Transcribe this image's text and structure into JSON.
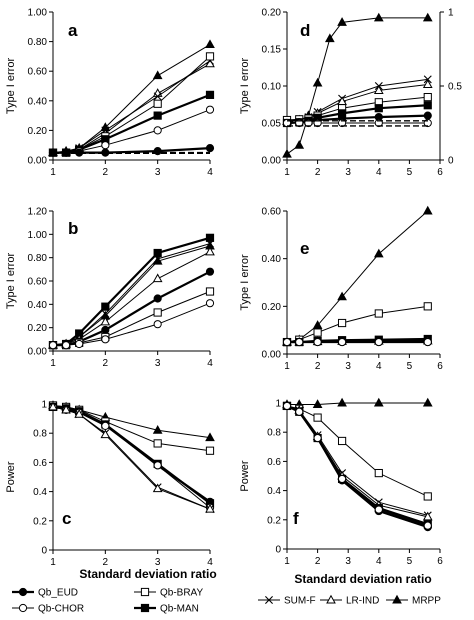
{
  "figure": {
    "xtitle_left": "Standard deviation ratio",
    "xtitle_right": "Standard deviation ratio"
  },
  "legend": {
    "left": [
      {
        "name": "Qb_EUD",
        "series": "EUD"
      },
      {
        "name": "Qb-BRAY",
        "series": "BRAY"
      },
      {
        "name": "Qb-CHOR",
        "series": "CHOR"
      },
      {
        "name": "Qb-MAN",
        "series": "MAN"
      }
    ],
    "right": [
      {
        "name": "SUM-F",
        "series": "SUMF"
      },
      {
        "name": "LR-IND",
        "series": "LRIND"
      },
      {
        "name": "MRPP",
        "series": "MRPP"
      }
    ]
  },
  "series_styles": {
    "EUD": {
      "marker": "circle",
      "fill": "#000000",
      "lw": 2.2
    },
    "BRAY": {
      "marker": "square",
      "fill": "#ffffff",
      "lw": 1
    },
    "CHOR": {
      "marker": "circle",
      "fill": "#ffffff",
      "lw": 1
    },
    "MAN": {
      "marker": "square",
      "fill": "#000000",
      "lw": 2.2
    },
    "SUMF": {
      "marker": "x",
      "fill": "#000000",
      "lw": 1
    },
    "LRIND": {
      "marker": "triangle",
      "fill": "#ffffff",
      "lw": 1
    },
    "MRPP": {
      "marker": "triangle",
      "fill": "#000000",
      "lw": 1
    },
    "NOM1": {
      "marker": "none",
      "fill": "none",
      "lw": 1.4,
      "dash": "6,3"
    },
    "NOM2": {
      "marker": "none",
      "fill": "none",
      "lw": 1.4,
      "dash": "6,3"
    }
  },
  "chart_data": [
    {
      "panel": "a",
      "type": "line",
      "ylabel": "Type I error",
      "xlim": [
        1,
        4
      ],
      "ylim": [
        0,
        1
      ],
      "xticks": [
        1,
        2,
        3,
        4
      ],
      "yticks": [
        0,
        0.2,
        0.4,
        0.6,
        0.8,
        1.0
      ],
      "ytick_labels": [
        "0.00",
        "0.20",
        "0.40",
        "0.60",
        "0.80",
        "1.00"
      ],
      "series": [
        {
          "id": "MRPP",
          "x": [
            1,
            1.25,
            1.5,
            2,
            3,
            4
          ],
          "y": [
            0.05,
            0.06,
            0.08,
            0.22,
            0.57,
            0.78
          ]
        },
        {
          "id": "LRIND",
          "x": [
            1,
            1.25,
            1.5,
            2,
            3,
            4
          ],
          "y": [
            0.05,
            0.05,
            0.07,
            0.18,
            0.45,
            0.65
          ]
        },
        {
          "id": "SUMF",
          "x": [
            1,
            1.25,
            1.5,
            2,
            3,
            4
          ],
          "y": [
            0.05,
            0.05,
            0.08,
            0.2,
            0.43,
            0.67
          ]
        },
        {
          "id": "BRAY",
          "x": [
            1,
            1.25,
            1.5,
            2,
            3,
            4
          ],
          "y": [
            0.05,
            0.05,
            0.07,
            0.16,
            0.38,
            0.7
          ]
        },
        {
          "id": "MAN",
          "x": [
            1,
            1.25,
            1.5,
            2,
            3,
            4
          ],
          "y": [
            0.05,
            0.05,
            0.07,
            0.14,
            0.3,
            0.44
          ]
        },
        {
          "id": "CHOR",
          "x": [
            1,
            1.25,
            1.5,
            2,
            3,
            4
          ],
          "y": [
            0.05,
            0.05,
            0.06,
            0.1,
            0.2,
            0.34
          ]
        },
        {
          "id": "EUD",
          "x": [
            1,
            1.25,
            1.5,
            2,
            3,
            4
          ],
          "y": [
            0.05,
            0.05,
            0.05,
            0.05,
            0.06,
            0.08
          ]
        },
        {
          "id": "NOM1",
          "x": [
            1,
            4
          ],
          "y": [
            0.05,
            0.05
          ]
        },
        {
          "id": "NOM2",
          "x": [
            1,
            4
          ],
          "y": [
            0.045,
            0.045
          ]
        }
      ]
    },
    {
      "panel": "b",
      "type": "line",
      "ylabel": "Type I error",
      "xlim": [
        1,
        4
      ],
      "ylim": [
        0,
        1.2
      ],
      "xticks": [
        1,
        2,
        3,
        4
      ],
      "yticks": [
        0,
        0.2,
        0.4,
        0.6,
        0.8,
        1.0,
        1.2
      ],
      "ytick_labels": [
        "0.00",
        "0.20",
        "0.40",
        "0.60",
        "0.80",
        "1.00",
        "1.20"
      ],
      "series": [
        {
          "id": "MAN",
          "x": [
            1,
            1.25,
            1.5,
            2,
            3,
            4
          ],
          "y": [
            0.05,
            0.06,
            0.15,
            0.38,
            0.84,
            0.97
          ]
        },
        {
          "id": "SUMF",
          "x": [
            1,
            1.25,
            1.5,
            2,
            3,
            4
          ],
          "y": [
            0.05,
            0.06,
            0.12,
            0.32,
            0.79,
            0.92
          ]
        },
        {
          "id": "MRPP",
          "x": [
            1,
            1.25,
            1.5,
            2,
            3,
            4
          ],
          "y": [
            0.05,
            0.06,
            0.12,
            0.3,
            0.77,
            0.9
          ]
        },
        {
          "id": "LRIND",
          "x": [
            1,
            1.25,
            1.5,
            2,
            3,
            4
          ],
          "y": [
            0.05,
            0.06,
            0.1,
            0.25,
            0.62,
            0.85
          ]
        },
        {
          "id": "EUD",
          "x": [
            1,
            1.25,
            1.5,
            2,
            3,
            4
          ],
          "y": [
            0.05,
            0.05,
            0.08,
            0.18,
            0.45,
            0.68
          ]
        },
        {
          "id": "BRAY",
          "x": [
            1,
            1.25,
            1.5,
            2,
            3,
            4
          ],
          "y": [
            0.05,
            0.05,
            0.07,
            0.12,
            0.33,
            0.51
          ]
        },
        {
          "id": "CHOR",
          "x": [
            1,
            1.25,
            1.5,
            2,
            3,
            4
          ],
          "y": [
            0.05,
            0.05,
            0.06,
            0.1,
            0.23,
            0.41
          ]
        }
      ]
    },
    {
      "panel": "c",
      "type": "line",
      "ylabel": "Power",
      "xlim": [
        1,
        4
      ],
      "ylim": [
        0,
        1
      ],
      "xticks": [
        1,
        2,
        3,
        4
      ],
      "yticks": [
        0,
        0.2,
        0.4,
        0.6,
        0.8,
        1.0
      ],
      "ytick_labels": [
        "0",
        "0.2",
        "0.4",
        "0.6",
        "0.8",
        "1"
      ],
      "series": [
        {
          "id": "MRPP",
          "x": [
            1,
            1.25,
            1.5,
            2,
            3,
            4
          ],
          "y": [
            0.99,
            0.98,
            0.96,
            0.91,
            0.82,
            0.77
          ]
        },
        {
          "id": "BRAY",
          "x": [
            1,
            1.25,
            1.5,
            2,
            3,
            4
          ],
          "y": [
            0.99,
            0.98,
            0.96,
            0.88,
            0.73,
            0.68
          ]
        },
        {
          "id": "MAN",
          "x": [
            1,
            1.25,
            1.5,
            2,
            3,
            4
          ],
          "y": [
            0.98,
            0.97,
            0.95,
            0.86,
            0.59,
            0.32
          ]
        },
        {
          "id": "EUD",
          "x": [
            1,
            1.25,
            1.5,
            2,
            3,
            4
          ],
          "y": [
            0.98,
            0.97,
            0.95,
            0.86,
            0.58,
            0.33
          ]
        },
        {
          "id": "CHOR",
          "x": [
            1,
            1.25,
            1.5,
            2,
            3,
            4
          ],
          "y": [
            0.98,
            0.96,
            0.94,
            0.85,
            0.58,
            0.29
          ]
        },
        {
          "id": "SUMF",
          "x": [
            1,
            1.25,
            1.5,
            2,
            3,
            4
          ],
          "y": [
            0.98,
            0.96,
            0.93,
            0.8,
            0.43,
            0.28
          ]
        },
        {
          "id": "LRIND",
          "x": [
            1,
            1.25,
            1.5,
            2,
            3,
            4
          ],
          "y": [
            0.98,
            0.96,
            0.93,
            0.79,
            0.42,
            0.28
          ]
        }
      ]
    },
    {
      "panel": "d",
      "type": "line",
      "ylabel": "Type I error",
      "xlim": [
        1,
        6
      ],
      "ylim": [
        0,
        0.2
      ],
      "xticks": [
        1,
        2,
        3,
        4,
        5,
        6
      ],
      "yticks": [
        0,
        0.05,
        0.1,
        0.15,
        0.2
      ],
      "ytick_labels": [
        "0.00",
        "0.05",
        "0.10",
        "0.15",
        "0.20"
      ],
      "y2lim": [
        0,
        1
      ],
      "y2ticks": [
        0,
        0.5,
        1
      ],
      "y2tick_labels": [
        "0",
        "0.5",
        "1"
      ],
      "series": [
        {
          "id": "MRPP",
          "axis": "y2",
          "x": [
            1,
            1.4,
            1.7,
            2,
            2.4,
            2.8,
            4,
            5.6
          ],
          "y": [
            0.04,
            0.1,
            0.3,
            0.52,
            0.82,
            0.93,
            0.96,
            0.96
          ]
        },
        {
          "id": "SUMF",
          "x": [
            1,
            1.4,
            1.7,
            2,
            2.8,
            4,
            5.6
          ],
          "y": [
            0.052,
            0.055,
            0.058,
            0.065,
            0.083,
            0.1,
            0.109
          ]
        },
        {
          "id": "LRIND",
          "x": [
            1,
            1.4,
            1.7,
            2,
            2.8,
            4,
            5.6
          ],
          "y": [
            0.052,
            0.054,
            0.057,
            0.063,
            0.079,
            0.094,
            0.102
          ]
        },
        {
          "id": "BRAY",
          "x": [
            1,
            1.4,
            1.7,
            2,
            2.8,
            4,
            5.6
          ],
          "y": [
            0.054,
            0.055,
            0.056,
            0.06,
            0.07,
            0.078,
            0.085
          ]
        },
        {
          "id": "MAN",
          "x": [
            1,
            1.4,
            1.7,
            2,
            2.8,
            4,
            5.6
          ],
          "y": [
            0.05,
            0.051,
            0.053,
            0.057,
            0.063,
            0.07,
            0.074
          ]
        },
        {
          "id": "EUD",
          "x": [
            1,
            1.4,
            1.7,
            2,
            2.8,
            4,
            5.6
          ],
          "y": [
            0.05,
            0.051,
            0.052,
            0.054,
            0.056,
            0.058,
            0.06
          ]
        },
        {
          "id": "CHOR",
          "x": [
            1,
            1.4,
            1.7,
            2,
            2.8,
            4,
            5.6
          ],
          "y": [
            0.05,
            0.05,
            0.05,
            0.05,
            0.05,
            0.05,
            0.05
          ]
        },
        {
          "id": "NOM1",
          "x": [
            1,
            5.7
          ],
          "y": [
            0.053,
            0.053
          ]
        },
        {
          "id": "NOM2",
          "x": [
            1,
            5.7
          ],
          "y": [
            0.046,
            0.046
          ]
        }
      ]
    },
    {
      "panel": "e",
      "type": "line",
      "ylabel": "Type I error",
      "xlim": [
        1,
        6
      ],
      "ylim": [
        0,
        0.6
      ],
      "xticks": [
        1,
        2,
        3,
        4,
        5,
        6
      ],
      "yticks": [
        0,
        0.2,
        0.4,
        0.6
      ],
      "ytick_labels": [
        "0.00",
        "0.20",
        "0.40",
        "0.60"
      ],
      "series": [
        {
          "id": "MRPP",
          "x": [
            1,
            1.4,
            2,
            2.8,
            4,
            5.6
          ],
          "y": [
            0.05,
            0.06,
            0.12,
            0.24,
            0.42,
            0.6
          ]
        },
        {
          "id": "BRAY",
          "x": [
            1,
            1.4,
            2,
            2.8,
            4,
            5.6
          ],
          "y": [
            0.05,
            0.06,
            0.09,
            0.13,
            0.17,
            0.2
          ]
        },
        {
          "id": "MAN",
          "x": [
            1,
            1.4,
            2,
            2.8,
            4,
            5.6
          ],
          "y": [
            0.05,
            0.05,
            0.055,
            0.058,
            0.06,
            0.063
          ]
        },
        {
          "id": "SUMF",
          "x": [
            1,
            1.4,
            2,
            2.8,
            4,
            5.6
          ],
          "y": [
            0.05,
            0.05,
            0.053,
            0.055,
            0.056,
            0.058
          ]
        },
        {
          "id": "LRIND",
          "x": [
            1,
            1.4,
            2,
            2.8,
            4,
            5.6
          ],
          "y": [
            0.05,
            0.05,
            0.052,
            0.053,
            0.054,
            0.055
          ]
        },
        {
          "id": "EUD",
          "x": [
            1,
            1.4,
            2,
            2.8,
            4,
            5.6
          ],
          "y": [
            0.05,
            0.05,
            0.05,
            0.05,
            0.05,
            0.05
          ]
        },
        {
          "id": "CHOR",
          "x": [
            1,
            1.4,
            2,
            2.8,
            4,
            5.6
          ],
          "y": [
            0.05,
            0.05,
            0.05,
            0.05,
            0.05,
            0.05
          ]
        }
      ]
    },
    {
      "panel": "f",
      "type": "line",
      "ylabel": "Power",
      "xlim": [
        1,
        6
      ],
      "ylim": [
        0,
        1
      ],
      "xticks": [
        1,
        2,
        3,
        4,
        5,
        6
      ],
      "yticks": [
        0,
        0.2,
        0.4,
        0.6,
        0.8,
        1.0
      ],
      "ytick_labels": [
        "0",
        "0.2",
        "0.4",
        "0.6",
        "0.8",
        "1"
      ],
      "series": [
        {
          "id": "MRPP",
          "x": [
            1,
            1.4,
            2,
            2.8,
            4,
            5.6
          ],
          "y": [
            0.99,
            0.99,
            0.99,
            1.0,
            1.0,
            1.0
          ]
        },
        {
          "id": "BRAY",
          "x": [
            1,
            1.4,
            2,
            2.8,
            4,
            5.6
          ],
          "y": [
            0.98,
            0.96,
            0.9,
            0.74,
            0.52,
            0.36
          ]
        },
        {
          "id": "SUMF",
          "x": [
            1,
            1.4,
            2,
            2.8,
            4,
            5.6
          ],
          "y": [
            0.98,
            0.95,
            0.78,
            0.52,
            0.32,
            0.23
          ]
        },
        {
          "id": "LRIND",
          "x": [
            1,
            1.4,
            2,
            2.8,
            4,
            5.6
          ],
          "y": [
            0.98,
            0.95,
            0.77,
            0.5,
            0.3,
            0.22
          ]
        },
        {
          "id": "MAN",
          "x": [
            1,
            1.4,
            2,
            2.8,
            4,
            5.6
          ],
          "y": [
            0.98,
            0.94,
            0.76,
            0.48,
            0.28,
            0.17
          ]
        },
        {
          "id": "EUD",
          "x": [
            1,
            1.4,
            2,
            2.8,
            4,
            5.6
          ],
          "y": [
            0.98,
            0.94,
            0.76,
            0.47,
            0.26,
            0.15
          ]
        },
        {
          "id": "CHOR",
          "x": [
            1,
            1.4,
            2,
            2.8,
            4,
            5.6
          ],
          "y": [
            0.98,
            0.94,
            0.76,
            0.48,
            0.27,
            0.16
          ]
        }
      ]
    }
  ]
}
